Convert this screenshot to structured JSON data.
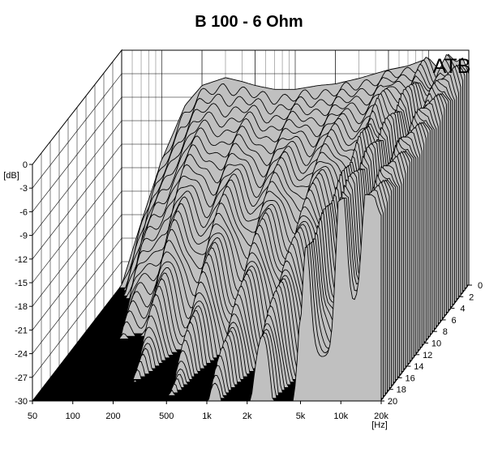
{
  "chart_data": {
    "type": "area",
    "title": "B 100 - 6 Ohm",
    "logo_text": "ATB",
    "x_axis": {
      "unit_label": "[Hz]",
      "scale": "log",
      "range": [
        50,
        20000
      ],
      "tick_labels": [
        "50",
        "100",
        "200",
        "500",
        "1k",
        "2k",
        "5k",
        "10k",
        "20k"
      ],
      "tick_values": [
        50,
        100,
        200,
        500,
        1000,
        2000,
        5000,
        10000,
        20000
      ]
    },
    "y_axis": {
      "unit_label": "[dB]",
      "range": [
        -30,
        0
      ],
      "tick_labels": [
        "0",
        "-3",
        "-6",
        "-9",
        "-12",
        "-15",
        "-18",
        "-21",
        "-24",
        "-27",
        "-30"
      ],
      "tick_values": [
        0,
        -3,
        -6,
        -9,
        -12,
        -15,
        -18,
        -21,
        -24,
        -27,
        -30
      ]
    },
    "z_axis": {
      "range": [
        0,
        20
      ],
      "tick_labels": [
        "0",
        "2",
        "4",
        "6",
        "8",
        "10",
        "12",
        "14",
        "16",
        "18",
        "20"
      ],
      "tick_values": [
        0,
        2,
        4,
        6,
        8,
        10,
        12,
        14,
        16,
        18,
        20
      ]
    },
    "grid": true,
    "colors": {
      "surface": "#c0c0c0",
      "slice_line": "#000000",
      "floor": "#000000",
      "grid": "#000000",
      "background": "#ffffff"
    },
    "slices": 44,
    "base_response": {
      "freq_hz": [
        50,
        70,
        100,
        150,
        200,
        300,
        400,
        500,
        700,
        1000,
        1500,
        2000,
        3000,
        5000,
        7000,
        10000,
        12000,
        14000,
        16000,
        18000,
        20000
      ],
      "level_db": [
        -30,
        -22,
        -14,
        -7,
        -4.5,
        -3.5,
        -4,
        -4.5,
        -5,
        -5,
        -4.5,
        -4.3,
        -3.6,
        -2.5,
        -2,
        -1,
        -2.5,
        -0.5,
        -1.5,
        -1,
        -3
      ]
    }
  }
}
